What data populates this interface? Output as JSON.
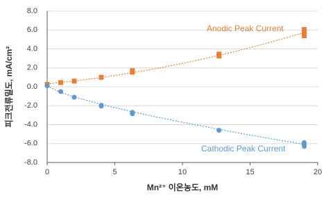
{
  "chart_data": {
    "type": "scatter",
    "x_label": "Mn²⁺ 이온농도, mM",
    "y_label": "피크전류밀도, mA/cm²",
    "xlim": [
      0,
      20
    ],
    "xticks": [
      0,
      5,
      10,
      15,
      20
    ],
    "ylim": [
      -8,
      8
    ],
    "yticks": [
      {
        "value": -8,
        "label": "-8.0"
      },
      {
        "value": -6,
        "label": "-6.0"
      },
      {
        "value": -4,
        "label": "-4.0"
      },
      {
        "value": -2,
        "label": "-2.0"
      },
      {
        "value": 0,
        "label": "0.0"
      },
      {
        "value": 2,
        "label": "2.0"
      },
      {
        "value": 4,
        "label": "4.0"
      },
      {
        "value": 6,
        "label": "6.0"
      },
      {
        "value": 8,
        "label": "8.0"
      }
    ],
    "grid": true,
    "series": [
      {
        "name": "Anodic Peak Current",
        "color": "#ed7d31",
        "marker": "square",
        "x": [
          0,
          1,
          2,
          4,
          6.3,
          6.3,
          12.7,
          12.7,
          19,
          19,
          19
        ],
        "values": [
          0.25,
          0.45,
          0.6,
          1.0,
          1.55,
          1.7,
          3.25,
          3.45,
          5.4,
          5.8,
          6.05
        ],
        "trendline": {
          "x": [
            0,
            2,
            4,
            6,
            8,
            10,
            12,
            14,
            16,
            18,
            19
          ],
          "values": [
            0.3,
            0.61,
            0.98,
            1.42,
            1.91,
            2.47,
            3.09,
            3.77,
            4.51,
            5.32,
            5.74
          ]
        }
      },
      {
        "name": "Cathodic Peak Current",
        "color": "#5b9bd5",
        "marker": "circle",
        "x": [
          0,
          1,
          2,
          4,
          4,
          6.3,
          6.3,
          12.7,
          19,
          19,
          19
        ],
        "values": [
          0.1,
          -0.5,
          -1.1,
          -1.95,
          -2.05,
          -2.7,
          -2.85,
          -4.6,
          -5.9,
          -6.1,
          -6.3
        ],
        "trendline": {
          "x": [
            0,
            1,
            2,
            4,
            6,
            8,
            10,
            12,
            14,
            16,
            18,
            19
          ],
          "values": [
            0.1,
            -0.6,
            -1.07,
            -1.85,
            -2.54,
            -3.16,
            -3.75,
            -4.3,
            -4.84,
            -5.35,
            -5.84,
            -6.09
          ]
        }
      }
    ]
  }
}
